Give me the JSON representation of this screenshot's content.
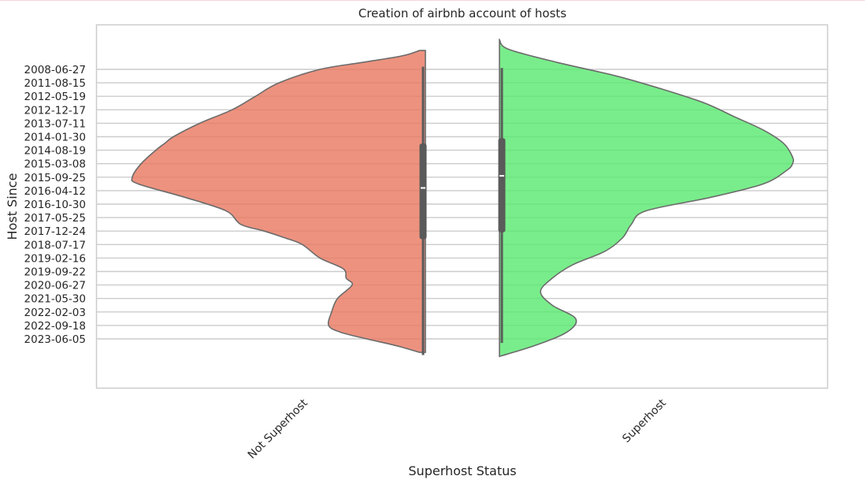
{
  "chart_data": {
    "type": "violin",
    "title": "Creation of airbnb account of hosts",
    "xlabel": "Superhost Status",
    "ylabel": "Host Since",
    "categories": [
      "Not Superhost",
      "Superhost"
    ],
    "y_ticks": [
      "2008-06-27",
      "2011-08-15",
      "2012-05-19",
      "2012-12-17",
      "2013-07-11",
      "2014-01-30",
      "2014-08-19",
      "2015-03-08",
      "2015-09-25",
      "2016-04-12",
      "2016-10-30",
      "2017-05-25",
      "2017-12-24",
      "2018-07-17",
      "2019-02-16",
      "2019-09-22",
      "2020-06-27",
      "2021-05-30",
      "2022-02-03",
      "2022-09-18",
      "2023-06-05"
    ],
    "y_range": [
      -2.3,
      21.3
    ],
    "grid": true,
    "colors": {
      "Not Superhost": "#e8775f",
      "Superhost": "#58e86e",
      "outline": "#6b6b6b",
      "grid": "#cccccc"
    },
    "series": [
      {
        "name": "Not Superhost",
        "side": "left",
        "density_profile": [
          [
            -1.4,
            0.02
          ],
          [
            -1.0,
            0.08
          ],
          [
            -0.5,
            0.22
          ],
          [
            0.0,
            0.36
          ],
          [
            1.0,
            0.5
          ],
          [
            2.0,
            0.58
          ],
          [
            3.0,
            0.66
          ],
          [
            4.0,
            0.77
          ],
          [
            5.0,
            0.86
          ],
          [
            5.5,
            0.89
          ],
          [
            6.0,
            0.92
          ],
          [
            7.0,
            0.97
          ],
          [
            8.0,
            1.0
          ],
          [
            8.5,
            0.98
          ],
          [
            9.5,
            0.82
          ],
          [
            10.5,
            0.68
          ],
          [
            11.5,
            0.63
          ],
          [
            12.0,
            0.55
          ],
          [
            12.5,
            0.48
          ],
          [
            13.0,
            0.42
          ],
          [
            14.0,
            0.36
          ],
          [
            14.8,
            0.28
          ],
          [
            15.5,
            0.27
          ],
          [
            16.0,
            0.25
          ],
          [
            17.0,
            0.3
          ],
          [
            18.0,
            0.32
          ],
          [
            19.0,
            0.33
          ],
          [
            19.5,
            0.29
          ],
          [
            20.0,
            0.2
          ],
          [
            20.5,
            0.1
          ],
          [
            21.0,
            0.02
          ]
        ],
        "whisker_range": [
          -0.2,
          21.2
        ],
        "iqr": [
          5.5,
          12.6
        ],
        "median": 8.8
      },
      {
        "name": "Superhost",
        "side": "right",
        "density_profile": [
          [
            -2.2,
            0.0
          ],
          [
            -1.5,
            0.03
          ],
          [
            -0.5,
            0.2
          ],
          [
            0.5,
            0.4
          ],
          [
            1.5,
            0.56
          ],
          [
            2.5,
            0.7
          ],
          [
            3.5,
            0.8
          ],
          [
            4.5,
            0.9
          ],
          [
            5.5,
            0.97
          ],
          [
            6.5,
            1.0
          ],
          [
            7.0,
            1.0
          ],
          [
            7.5,
            0.98
          ],
          [
            8.5,
            0.9
          ],
          [
            9.5,
            0.72
          ],
          [
            10.5,
            0.5
          ],
          [
            11.5,
            0.45
          ],
          [
            12.5,
            0.42
          ],
          [
            13.5,
            0.36
          ],
          [
            14.5,
            0.25
          ],
          [
            15.5,
            0.18
          ],
          [
            16.5,
            0.14
          ],
          [
            17.5,
            0.18
          ],
          [
            18.5,
            0.26
          ],
          [
            19.5,
            0.23
          ],
          [
            20.5,
            0.12
          ],
          [
            21.3,
            0.0
          ]
        ],
        "whisker_range": [
          -0.1,
          20.3
        ],
        "iqr": [
          5.1,
          12.1
        ],
        "median": 7.9
      }
    ]
  }
}
